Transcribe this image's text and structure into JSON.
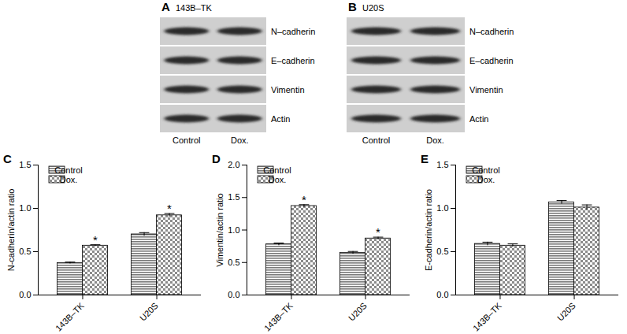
{
  "blots": [
    {
      "title": "A",
      "subtitle": "143B–TK",
      "rows": [
        "N–cadherin",
        "E–cadherin",
        "Vimentin",
        "Actin"
      ],
      "columns": [
        "Control",
        "Dox."
      ]
    },
    {
      "title": "B",
      "subtitle": "U20S",
      "rows": [
        "N–cadherin",
        "E–cadherin",
        "Vimentin",
        "Actin"
      ],
      "columns": [
        "Control",
        "Dox."
      ]
    }
  ],
  "chart_data": [
    {
      "type": "bar",
      "title": "C",
      "ylabel": "N-cadherin/actin ratio",
      "categories": [
        "143B–TK",
        "U20S"
      ],
      "series": [
        {
          "name": "Control",
          "color": "#7a7a7a",
          "values": [
            0.37,
            0.7
          ],
          "errors": [
            0.01,
            0.02
          ]
        },
        {
          "name": "Dox.",
          "color": "#8c8c8c",
          "values": [
            0.57,
            0.92
          ],
          "errors": [
            0.01,
            0.02
          ]
        }
      ],
      "ylim": [
        0,
        1.5
      ],
      "yticks": [
        {
          "value": 0,
          "label": "0.0"
        },
        {
          "value": 0.5,
          "label": "0.5"
        },
        {
          "value": 1,
          "label": "1.0"
        },
        {
          "value": 1.5,
          "label": "1.5"
        }
      ],
      "annotations": [
        {
          "category": "143B–TK",
          "series": "Dox.",
          "text": "*"
        },
        {
          "category": "U20S",
          "series": "Dox.",
          "text": "*"
        }
      ],
      "legend": "top-left"
    },
    {
      "type": "bar",
      "title": "D",
      "ylabel": "Vimentin/actin ratio",
      "categories": [
        "143B–TK",
        "U20S"
      ],
      "series": [
        {
          "name": "Control",
          "color": "#7a7a7a",
          "values": [
            0.78,
            0.65
          ],
          "errors": [
            0.02,
            0.02
          ]
        },
        {
          "name": "Dox.",
          "color": "#8c8c8c",
          "values": [
            1.37,
            0.87
          ],
          "errors": [
            0.02,
            0.02
          ]
        }
      ],
      "ylim": [
        0,
        2
      ],
      "yticks": [
        {
          "value": 0,
          "label": "0.0"
        },
        {
          "value": 0.5,
          "label": "0.5"
        },
        {
          "value": 1,
          "label": "1.0"
        },
        {
          "value": 1.5,
          "label": "1.5"
        },
        {
          "value": 2,
          "label": "2.0"
        }
      ],
      "annotations": [
        {
          "category": "143B–TK",
          "series": "Dox.",
          "text": "*"
        },
        {
          "category": "U20S",
          "series": "Dox.",
          "text": "*"
        }
      ],
      "legend": "top-left"
    },
    {
      "type": "bar",
      "title": "E",
      "ylabel": "E-cadherin/actin ratio",
      "categories": [
        "143B–TK",
        "U20S"
      ],
      "series": [
        {
          "name": "Control",
          "color": "#7a7a7a",
          "values": [
            0.59,
            1.07
          ],
          "errors": [
            0.02,
            0.02
          ]
        },
        {
          "name": "Dox.",
          "color": "#8c8c8c",
          "values": [
            0.57,
            1.01
          ],
          "errors": [
            0.02,
            0.03
          ]
        }
      ],
      "ylim": [
        0,
        1.5
      ],
      "yticks": [
        {
          "value": 0,
          "label": "0.0"
        },
        {
          "value": 0.5,
          "label": "0.5"
        },
        {
          "value": 1,
          "label": "1.0"
        },
        {
          "value": 1.5,
          "label": "1.5"
        }
      ],
      "legend": "top-left"
    }
  ]
}
